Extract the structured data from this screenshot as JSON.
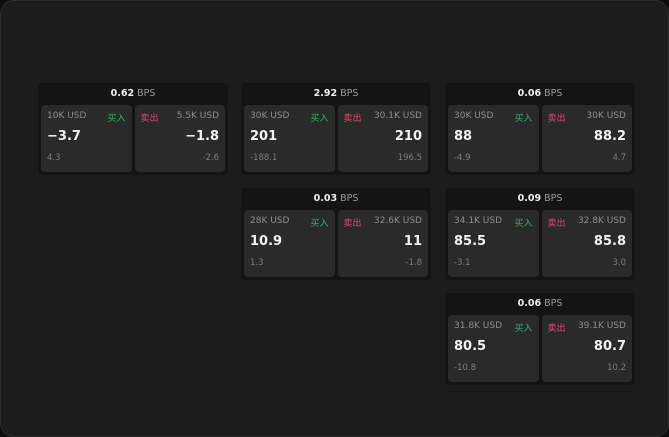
{
  "unit": "BPS",
  "buy_label": "买入",
  "sell_label": "卖出",
  "cards": [
    {
      "spread": "0.62",
      "bid": {
        "size": "10K USD",
        "price": "−3.7",
        "change": "4.3"
      },
      "ask": {
        "size": "5.5K USD",
        "price": "−1.8",
        "change": "-2.6"
      }
    },
    {
      "spread": "2.92",
      "bid": {
        "size": "30K USD",
        "price": "201",
        "change": "-188.1"
      },
      "ask": {
        "size": "30.1K USD",
        "price": "210",
        "change": "196.5"
      }
    },
    {
      "spread": "0.06",
      "bid": {
        "size": "30K USD",
        "price": "88",
        "change": "-4.9"
      },
      "ask": {
        "size": "30K USD",
        "price": "88.2",
        "change": "4.7"
      }
    },
    {
      "spread": "0.03",
      "bid": {
        "size": "28K USD",
        "price": "10.9",
        "change": "1.3"
      },
      "ask": {
        "size": "32.6K USD",
        "price": "11",
        "change": "-1.8"
      }
    },
    {
      "spread": "0.09",
      "bid": {
        "size": "34.1K USD",
        "price": "85.5",
        "change": "-3.1"
      },
      "ask": {
        "size": "32.8K USD",
        "price": "85.8",
        "change": "3.0"
      }
    },
    {
      "spread": "0.06",
      "bid": {
        "size": "31.8K USD",
        "price": "80.5",
        "change": "-10.8"
      },
      "ask": {
        "size": "39.1K USD",
        "price": "80.7",
        "change": "10.2"
      }
    }
  ]
}
